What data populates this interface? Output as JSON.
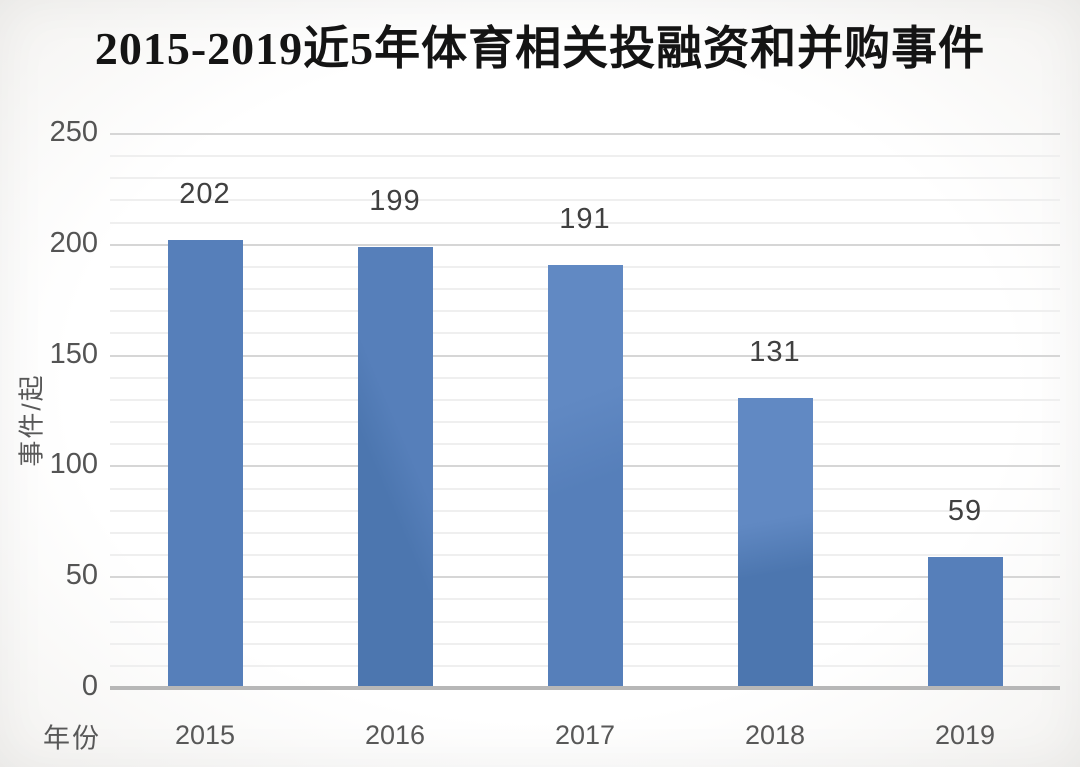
{
  "page": {
    "title": "2015-2019近5年体育相关投融资和并购事件"
  },
  "chart_data": {
    "type": "bar",
    "title": "2015-2019近5年体育相关投融资和并购事件",
    "categories": [
      "2015",
      "2016",
      "2017",
      "2018",
      "2019"
    ],
    "values": [
      202,
      199,
      191,
      131,
      59
    ],
    "xlabel": "年份",
    "ylabel": "事件/起",
    "ylim": [
      0,
      250
    ],
    "yticks": [
      0,
      50,
      100,
      150,
      200,
      250
    ],
    "ytick_major_step": 50,
    "ytick_minor_step": 10,
    "grid": "horizontal, minor every 10 and major every 50",
    "legend": "none",
    "data_labels_shown": true,
    "colors": {
      "bar": "#567fba",
      "bar_light": "#6189c3",
      "bar_dark": "#4c76af",
      "grid_minor": "#efefef",
      "grid_major": "#d6d6d6",
      "axis_line": "#b7b7b7",
      "title_text": "#141414",
      "tick_text": "#585858",
      "value_label_text": "#404040"
    }
  }
}
